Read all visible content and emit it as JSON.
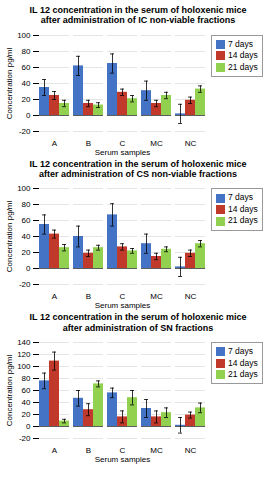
{
  "chart_data": [
    {
      "type": "bar",
      "title": "IL 12 concentration in the serum of holoxenic mice\nafter administration of IC non-viable fractions",
      "xlabel": "Serum samples",
      "ylabel": "Concentration pg/ml",
      "categories": [
        "A",
        "B",
        "C",
        "MC",
        "NC"
      ],
      "series": [
        {
          "name": "7 days",
          "color": "#4472C4",
          "values": [
            35,
            62,
            65,
            31,
            2
          ],
          "errors": [
            10,
            12,
            12,
            12,
            12
          ]
        },
        {
          "name": "14 days",
          "color": "#C0392B",
          "values": [
            25,
            15,
            29,
            15,
            19
          ],
          "errors": [
            5,
            4,
            4,
            4,
            4
          ]
        },
        {
          "name": "21 days",
          "color": "#92D050",
          "values": [
            15,
            13,
            21,
            25,
            33
          ],
          "errors": [
            4,
            3,
            4,
            4,
            4
          ]
        }
      ],
      "ylim": [
        -20,
        100
      ],
      "yticks": [
        -20,
        0,
        20,
        40,
        60,
        80,
        100
      ],
      "grid": true,
      "legend": "right"
    },
    {
      "type": "bar",
      "title": "IL 12 concentration in the serum of holoxenic mice\nafter administration of CS non-viable fractions",
      "xlabel": "Serum samples",
      "ylabel": "Concentration pg/ml",
      "categories": [
        "A",
        "B",
        "C",
        "MC",
        "NC"
      ],
      "series": [
        {
          "name": "7 days",
          "color": "#4472C4",
          "values": [
            55,
            40,
            67,
            31,
            2
          ],
          "errors": [
            12,
            13,
            14,
            12,
            12
          ]
        },
        {
          "name": "14 days",
          "color": "#C0392B",
          "values": [
            43,
            19,
            27,
            15,
            19
          ],
          "errors": [
            5,
            4,
            4,
            4,
            4
          ]
        },
        {
          "name": "21 days",
          "color": "#92D050",
          "values": [
            26,
            26,
            22,
            24,
            31
          ],
          "errors": [
            4,
            3,
            3,
            3,
            4
          ]
        }
      ],
      "ylim": [
        -20,
        100
      ],
      "yticks": [
        -20,
        0,
        20,
        40,
        60,
        80,
        100
      ],
      "grid": true,
      "legend": "right"
    },
    {
      "type": "bar",
      "title": "IL 12 concentration in the serum of holoxenic mice\nafter administration of SN fractions",
      "xlabel": "Serum samples",
      "ylabel": "Concentration pg/ml",
      "categories": [
        "A",
        "B",
        "C",
        "MC",
        "NC"
      ],
      "series": [
        {
          "name": "7 days",
          "color": "#4472C4",
          "values": [
            76,
            47,
            56,
            30,
            2
          ],
          "errors": [
            13,
            13,
            8,
            15,
            13
          ]
        },
        {
          "name": "14 days",
          "color": "#C0392B",
          "values": [
            109,
            28,
            16,
            16,
            19
          ],
          "errors": [
            15,
            10,
            10,
            10,
            5
          ]
        },
        {
          "name": "21 days",
          "color": "#92D050",
          "values": [
            9,
            71,
            48,
            23,
            31
          ],
          "errors": [
            3,
            5,
            12,
            8,
            8
          ]
        }
      ],
      "ylim": [
        -20,
        140
      ],
      "yticks": [
        -20,
        0,
        20,
        40,
        60,
        80,
        100,
        120,
        140
      ],
      "grid": true,
      "legend": "right"
    }
  ]
}
